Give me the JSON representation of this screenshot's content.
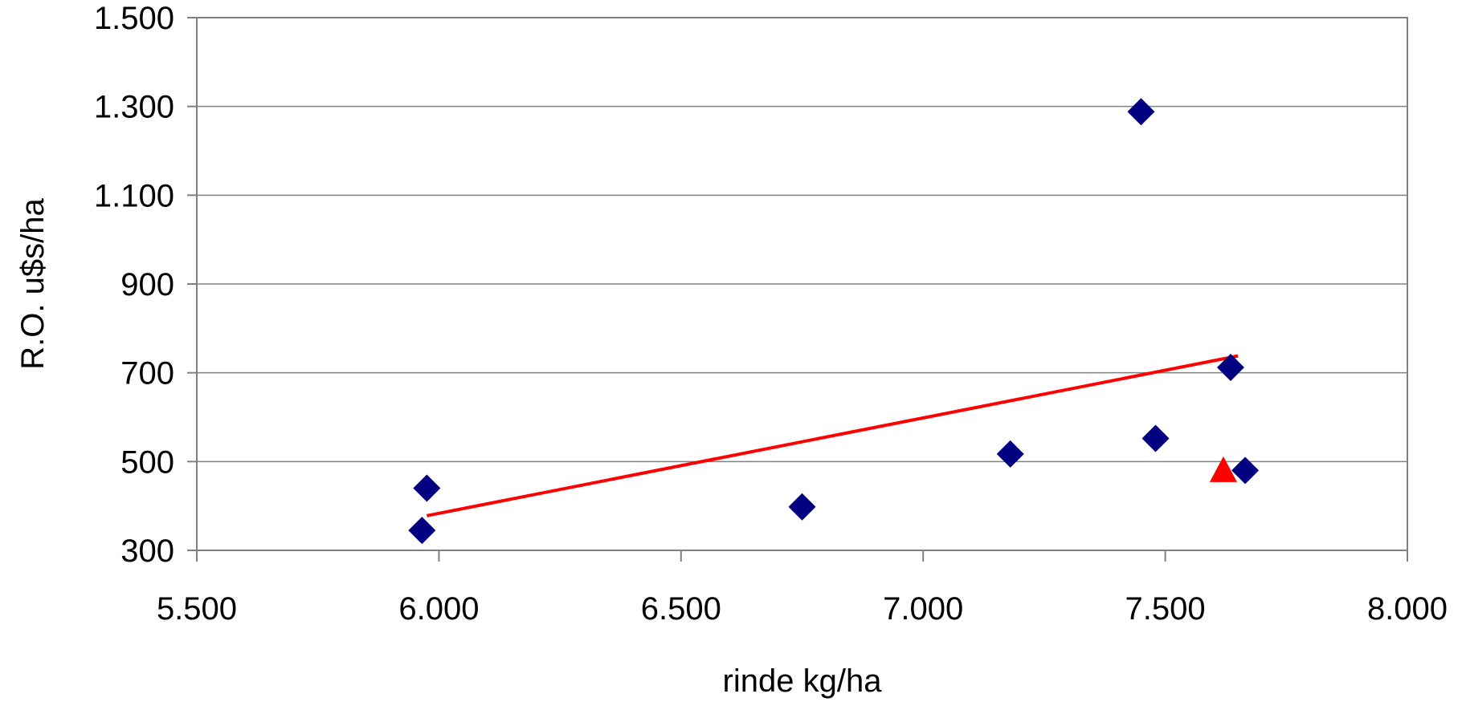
{
  "chart_data": {
    "type": "scatter",
    "title": "",
    "xlabel": "rinde kg/ha",
    "ylabel": "R.O. u$s/ha",
    "xlim": [
      5500,
      8000
    ],
    "ylim": [
      300,
      1500
    ],
    "x_ticks": [
      {
        "value": 5500,
        "label": "5.500"
      },
      {
        "value": 6000,
        "label": "6.000"
      },
      {
        "value": 6500,
        "label": "6.500"
      },
      {
        "value": 7000,
        "label": "7.000"
      },
      {
        "value": 7500,
        "label": "7.500"
      },
      {
        "value": 8000,
        "label": "8.000"
      }
    ],
    "y_ticks": [
      {
        "value": 300,
        "label": "300"
      },
      {
        "value": 500,
        "label": "500"
      },
      {
        "value": 700,
        "label": "700"
      },
      {
        "value": 900,
        "label": "900"
      },
      {
        "value": 1100,
        "label": "1.100"
      },
      {
        "value": 1300,
        "label": "1.300"
      },
      {
        "value": 1500,
        "label": "1.500"
      }
    ],
    "grid": "horizontal",
    "series": [
      {
        "marker": "diamond",
        "color": "#000080",
        "points": [
          {
            "x": 5965,
            "y": 345
          },
          {
            "x": 5975,
            "y": 440
          },
          {
            "x": 6750,
            "y": 398
          },
          {
            "x": 7180,
            "y": 517
          },
          {
            "x": 7450,
            "y": 1288
          },
          {
            "x": 7480,
            "y": 552
          },
          {
            "x": 7635,
            "y": 712
          },
          {
            "x": 7665,
            "y": 480
          }
        ]
      },
      {
        "marker": "triangle",
        "color": "#ff0000",
        "points": [
          {
            "x": 7620,
            "y": 477
          }
        ]
      }
    ],
    "trendline": {
      "color": "#ff0000",
      "points": [
        {
          "x": 5975,
          "y": 378
        },
        {
          "x": 7650,
          "y": 738
        }
      ]
    }
  }
}
